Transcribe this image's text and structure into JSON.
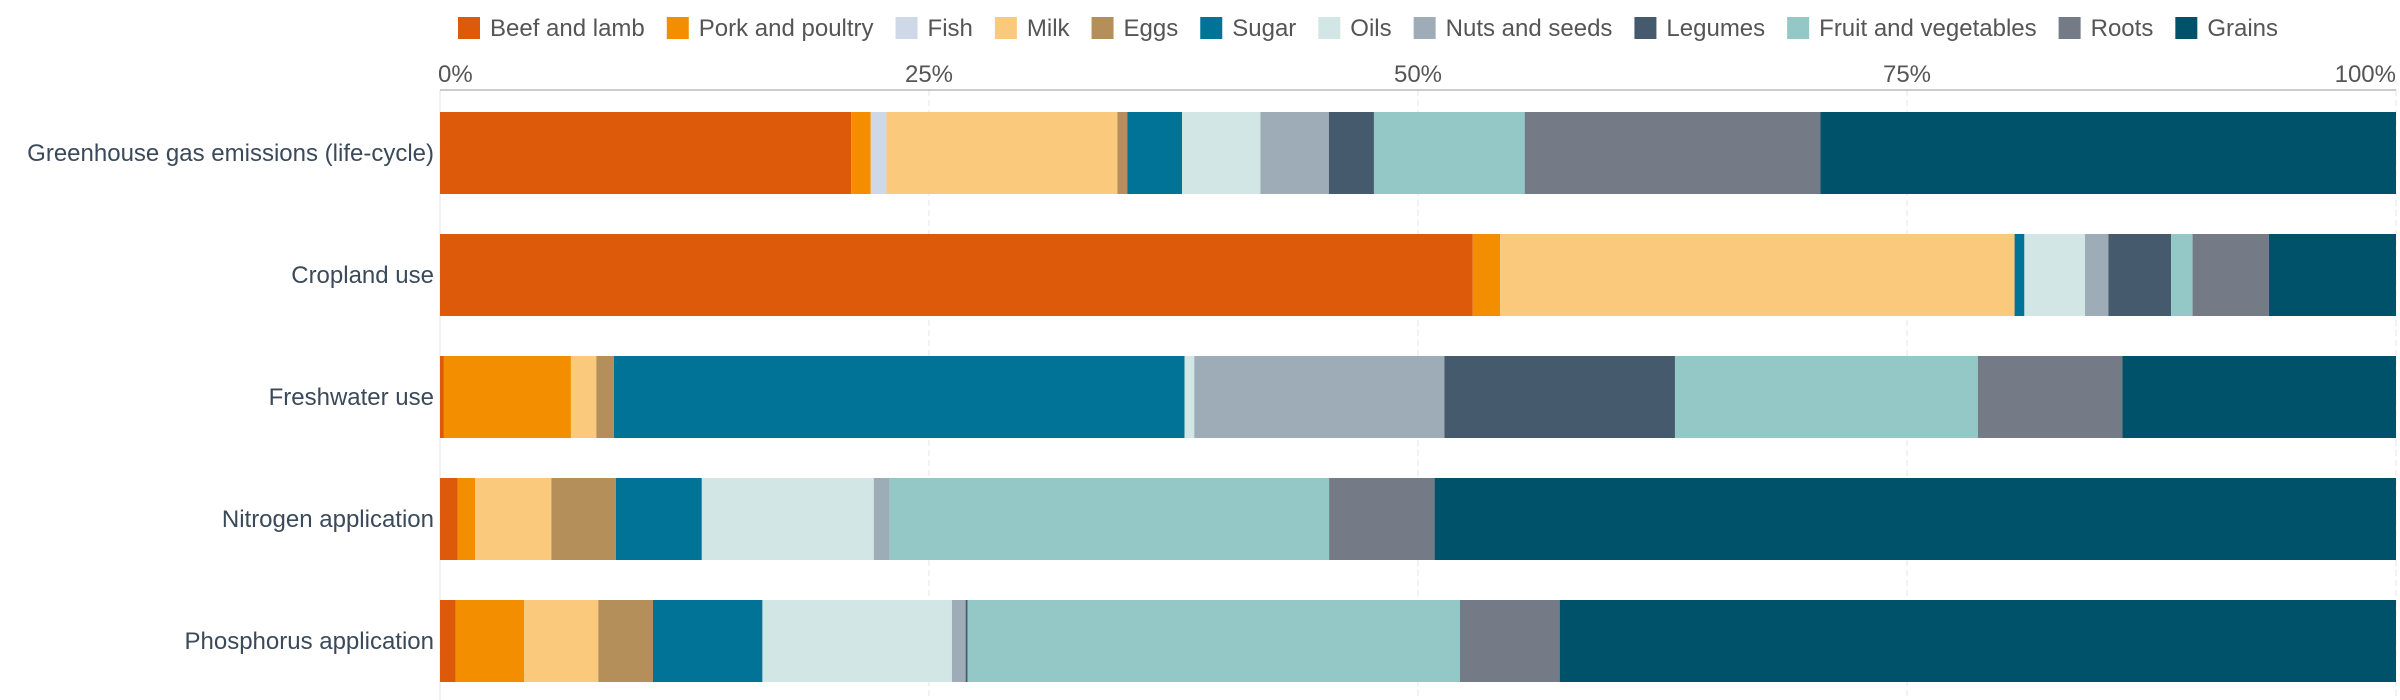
{
  "chart_data": {
    "type": "bar",
    "orientation": "horizontal",
    "stacked": true,
    "title": "",
    "xlabel": "",
    "ylabel": "",
    "xlim": [
      0,
      100
    ],
    "x_tick_values": [
      0,
      25,
      50,
      75,
      100
    ],
    "x_tick_labels": [
      "0%",
      "25%",
      "50%",
      "75%",
      "100%"
    ],
    "grid": true,
    "legend_position": "top",
    "categories": [
      "Greenhouse gas emissions (life-cycle)",
      "Cropland use",
      "Freshwater use",
      "Nitrogen application",
      "Phosphorus application"
    ],
    "series": [
      {
        "name": "Beef and lamb",
        "color": "#dd5a0a",
        "values": [
          21.0,
          52.8,
          0.2,
          0.9,
          0.8
        ]
      },
      {
        "name": "Pork and poultry",
        "color": "#f28e00",
        "values": [
          1.0,
          1.4,
          6.5,
          0.9,
          3.5
        ]
      },
      {
        "name": "Fish",
        "color": "#cfd8e6",
        "values": [
          0.8,
          0.0,
          0.0,
          0.0,
          0.0
        ]
      },
      {
        "name": "Milk",
        "color": "#fbc97c",
        "values": [
          11.8,
          26.3,
          1.3,
          3.9,
          3.8
        ]
      },
      {
        "name": "Eggs",
        "color": "#b58f5a",
        "values": [
          0.5,
          0.0,
          0.9,
          3.3,
          2.8
        ]
      },
      {
        "name": "Sugar",
        "color": "#007396",
        "values": [
          2.8,
          0.5,
          29.2,
          4.4,
          5.6
        ]
      },
      {
        "name": "Oils",
        "color": "#d2e6e5",
        "values": [
          4.0,
          3.1,
          0.5,
          8.8,
          9.7
        ]
      },
      {
        "name": "Nuts and seeds",
        "color": "#9eacb8",
        "values": [
          3.5,
          1.2,
          12.8,
          0.8,
          0.7
        ]
      },
      {
        "name": "Legumes",
        "color": "#465a6e",
        "values": [
          2.3,
          3.2,
          11.8,
          0.0,
          0.1
        ]
      },
      {
        "name": "Fruit and vegetables",
        "color": "#94c8c7",
        "values": [
          7.7,
          1.1,
          15.5,
          22.5,
          25.2
        ]
      },
      {
        "name": "Roots",
        "color": "#747b86",
        "values": [
          15.1,
          3.9,
          7.4,
          5.4,
          5.1
        ]
      },
      {
        "name": "Grains",
        "color": "#00516a",
        "values": [
          29.4,
          6.5,
          14.0,
          49.2,
          42.8
        ]
      }
    ]
  }
}
